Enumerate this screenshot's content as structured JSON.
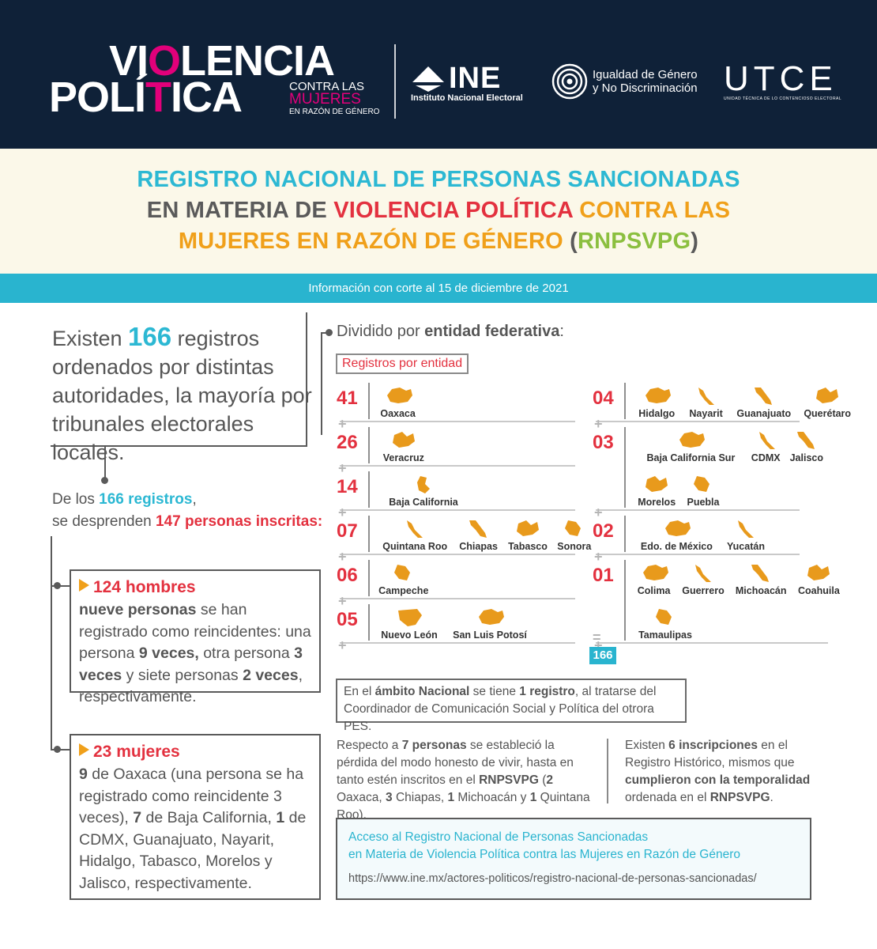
{
  "header": {
    "logo_line1_a": "VI",
    "logo_line1_b": "O",
    "logo_line1_c": "LENCIA",
    "logo_line2_a": "POLÍ",
    "logo_line2_b": "T",
    "logo_line2_c": "ICA",
    "logo_sub1": "CONTRA LAS",
    "logo_sub2": "MUJERES",
    "logo_sub3": "EN RAZÓN DE GÉNERO",
    "ine_name": "INE",
    "ine_sub": "Instituto Nacional Electoral",
    "igualdad_line1": "Igualdad de Género",
    "igualdad_line2": "y No Discriminación",
    "utce_name": "UTCE",
    "utce_sub": "UNIDAD TÉCNICA DE LO CONTENCIOSO ELECTORAL"
  },
  "title": {
    "line1": "REGISTRO NACIONAL DE PERSONAS SANCIONADAS",
    "line2_a": "EN MATERIA DE ",
    "line2_b": "VIOLENCIA POLÍTICA",
    "line2_c": " CONTRA LAS",
    "line3_a": "MUJERES EN RAZÓN DE GÉNERO",
    "line3_b": " (",
    "line3_c": "RNPSVPG",
    "line3_d": ")"
  },
  "cutoff": "Información con corte al 15 de diciembre de 2021",
  "intro": {
    "a": "Existen ",
    "num": "166",
    "b": " registros ordenados por distintas autoridades, la mayoría por tribunales electorales locales."
  },
  "delos": {
    "a": "De los ",
    "b": "166 registros",
    "c": ",",
    "d": "se desprenden ",
    "e": "147 personas inscritas:"
  },
  "hombres": {
    "head": "124 hombres",
    "b1": "nueve personas",
    "t1": " se han registrado como reincidentes: una persona ",
    "b2": "9 veces,",
    "t2": " otra persona ",
    "b3": "3 veces",
    "t3": " y siete personas ",
    "b4": "2 veces",
    "t4": ", respectivamente."
  },
  "mujeres": {
    "head": "23 mujeres",
    "b1": "9",
    "t1": " de Oaxaca (una persona se ha registrado como reincidente 3 veces), ",
    "b2": "7",
    "t2": " de Baja California, ",
    "b3": "1",
    "t3": " de CDMX, Guanajuato, Nayarit, Hidalgo, Tabasco, Morelos y Jalisco, respectivamente."
  },
  "dividido": {
    "a": "Dividido por ",
    "b": "entidad federativa",
    "c": ":"
  },
  "reg_label": "Registros por entidad",
  "left_groups": [
    {
      "count": "41",
      "states": [
        "Oaxaca"
      ]
    },
    {
      "count": "26",
      "states": [
        "Veracruz"
      ]
    },
    {
      "count": "14",
      "states": [
        "Baja California"
      ]
    },
    {
      "count": "07",
      "states": [
        "Quintana Roo",
        "Chiapas",
        "Tabasco",
        "Sonora"
      ]
    },
    {
      "count": "06",
      "states": [
        "Campeche"
      ]
    },
    {
      "count": "05",
      "states": [
        "Nuevo León",
        "San Luis Potosí"
      ]
    }
  ],
  "right_groups": [
    {
      "count": "04",
      "states": [
        "Hidalgo",
        "Nayarit",
        "Guanajuato",
        "Querétaro"
      ]
    },
    {
      "count": "03",
      "states": [
        "Baja California Sur",
        "CDMX",
        "Jalisco",
        "Morelos",
        "Puebla"
      ]
    },
    {
      "count": "02",
      "states": [
        "Edo. de México",
        "Yucatán"
      ]
    },
    {
      "count": "01",
      "states": [
        "Colima",
        "Guerrero",
        "Michoacán",
        "Coahuila",
        "Tamaulipas"
      ]
    }
  ],
  "plus_sign": "+",
  "equals_sign": "=",
  "total": "166",
  "nacional": {
    "a": "En el ",
    "b": "ámbito Nacional",
    "c": " se tiene ",
    "d": "1 registro",
    "e": ", al tratarse del Coordinador de Comunicación Social y Política del otrora PES."
  },
  "respecto": {
    "a": "Respecto a ",
    "b": "7 personas",
    "c": " se estableció la pérdida del modo honesto de vivir, hasta en tanto estén inscritos en el ",
    "d": "RNPSVPG",
    "e": " (",
    "f": "2",
    "g": " Oaxaca, ",
    "h": "3",
    "i": " Chiapas, ",
    "j": "1",
    "k": " Michoacán y ",
    "l": "1",
    "m": " Quintana Roo)."
  },
  "historico": {
    "a": "Existen ",
    "b": "6 inscripciones",
    "c": " en el Registro Histórico, mismos que ",
    "d": "cumplieron con la temporalidad",
    "e": " ordenada en el ",
    "f": "RNPSVPG",
    "g": "."
  },
  "acceso": {
    "line1": "Acceso al Registro Nacional de Personas Sancionadas",
    "line2": "en Materia de Violencia Política contra las Mujeres en Razón de Género",
    "url": "https://www.ine.mx/actores-politicos/registro-nacional-de-personas-sancionadas/"
  },
  "colors": {
    "navy": "#0f2138",
    "cyan": "#2cb8d3",
    "red": "#e3313f",
    "orange": "#f0a01a",
    "green": "#8bbf3f",
    "magenta": "#e2007a",
    "state_fill": "#e89a1c"
  }
}
